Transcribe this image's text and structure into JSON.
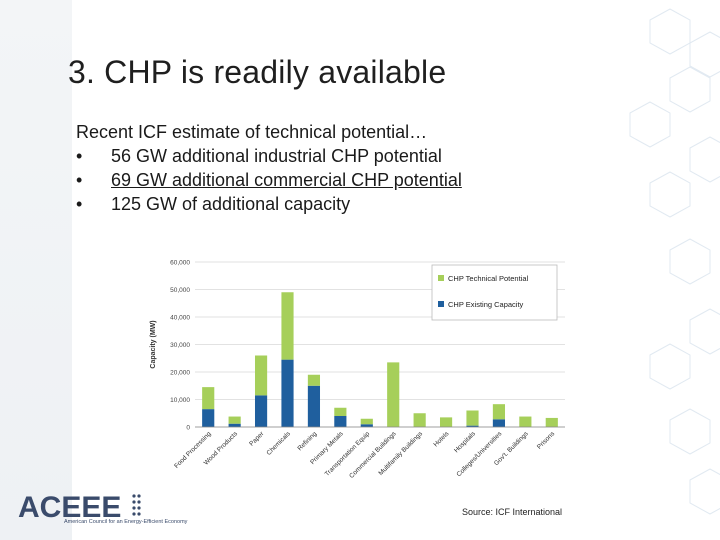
{
  "slide": {
    "title": "3. CHP is readily available",
    "intro": "Recent ICF estimate of technical potential…",
    "bullets": [
      {
        "marker": "•",
        "text": "56 GW additional industrial CHP potential"
      },
      {
        "marker": "•",
        "text": "69 GW additional commercial CHP potential"
      },
      {
        "marker": "•",
        "text": "125 GW of additional capacity"
      }
    ],
    "source": "Source: ICF International",
    "logo_text": "ACEEE",
    "logo_subtitle": "American Council for an Energy-Efficient Economy"
  },
  "chart_data": {
    "type": "bar",
    "stacked": true,
    "ylabel": "Capacity (MW)",
    "ylim": [
      0,
      60000
    ],
    "yticks": [
      "0",
      "10,000",
      "20,000",
      "30,000",
      "40,000",
      "50,000",
      "60,000"
    ],
    "categories": [
      "Food Processing",
      "Wood Products",
      "Paper",
      "Chemicals",
      "Refining",
      "Primary Metals",
      "Transportation Equip",
      "Commercial Buildings",
      "Multifamily Buildings",
      "Hotels",
      "Hospitals",
      "Colleges/Universities",
      "Gov't. Buildings",
      "Prisons"
    ],
    "series": [
      {
        "name": "CHP Existing Capacity",
        "color": "#1f5f9e",
        "values": [
          6500,
          1200,
          11500,
          24500,
          15000,
          4000,
          1000,
          0,
          0,
          0,
          500,
          2800,
          0,
          0
        ]
      },
      {
        "name": "CHP Technical Potential",
        "color": "#a6cf5a",
        "values": [
          8000,
          2600,
          14500,
          24500,
          4000,
          3000,
          2000,
          23500,
          5000,
          3500,
          5500,
          5500,
          3800,
          3300
        ]
      }
    ],
    "legend_position": "top-right",
    "grid": true
  },
  "colors": {
    "title": "#1f1f1f",
    "existing": "#1f5f9e",
    "potential": "#a6cf5a",
    "logo": "#3a4b6b"
  }
}
